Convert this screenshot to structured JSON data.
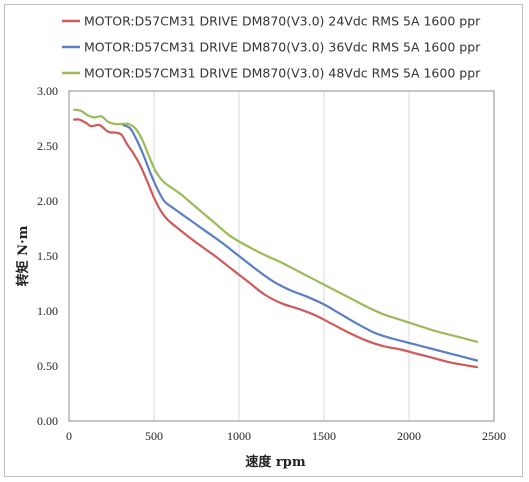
{
  "chart_data": {
    "type": "line",
    "xlabel": "速度 rpm",
    "ylabel": "转矩 N·m",
    "xlim": [
      0,
      2500
    ],
    "ylim": [
      0,
      3.0
    ],
    "x_ticks": [
      "0",
      "500",
      "1000",
      "1500",
      "2000",
      "2500"
    ],
    "y_ticks": [
      "0.00",
      "0.50",
      "1.00",
      "1.50",
      "2.00",
      "2.50",
      "3.00"
    ],
    "grid": "vertical",
    "legend_position": "top",
    "series": [
      {
        "name": "MOTOR:D57CM31 DRIVE DM870(V3.0) 24Vdc RMS 5A 1600 ppr",
        "color": "#d05a5a",
        "points": [
          [
            30,
            2.74
          ],
          [
            60,
            2.74
          ],
          [
            100,
            2.71
          ],
          [
            130,
            2.68
          ],
          [
            180,
            2.69
          ],
          [
            230,
            2.63
          ],
          [
            280,
            2.62
          ],
          [
            310,
            2.6
          ],
          [
            340,
            2.52
          ],
          [
            380,
            2.43
          ],
          [
            420,
            2.32
          ],
          [
            460,
            2.18
          ],
          [
            500,
            2.03
          ],
          [
            540,
            1.91
          ],
          [
            580,
            1.83
          ],
          [
            650,
            1.74
          ],
          [
            750,
            1.62
          ],
          [
            850,
            1.51
          ],
          [
            950,
            1.39
          ],
          [
            1050,
            1.27
          ],
          [
            1150,
            1.15
          ],
          [
            1250,
            1.07
          ],
          [
            1350,
            1.02
          ],
          [
            1450,
            0.96
          ],
          [
            1550,
            0.88
          ],
          [
            1650,
            0.8
          ],
          [
            1750,
            0.73
          ],
          [
            1850,
            0.68
          ],
          [
            1950,
            0.65
          ],
          [
            2050,
            0.61
          ],
          [
            2150,
            0.57
          ],
          [
            2250,
            0.53
          ],
          [
            2400,
            0.49
          ]
        ]
      },
      {
        "name": "MOTOR:D57CM31 DRIVE DM870(V3.0) 36Vdc RMS 5A 1600 ppr",
        "color": "#5a7fc4",
        "points": [
          [
            320,
            2.69
          ],
          [
            360,
            2.66
          ],
          [
            400,
            2.55
          ],
          [
            440,
            2.41
          ],
          [
            480,
            2.25
          ],
          [
            520,
            2.11
          ],
          [
            560,
            2.0
          ],
          [
            600,
            1.95
          ],
          [
            700,
            1.84
          ],
          [
            800,
            1.73
          ],
          [
            900,
            1.62
          ],
          [
            1000,
            1.5
          ],
          [
            1100,
            1.38
          ],
          [
            1200,
            1.27
          ],
          [
            1300,
            1.19
          ],
          [
            1400,
            1.13
          ],
          [
            1500,
            1.06
          ],
          [
            1600,
            0.97
          ],
          [
            1700,
            0.88
          ],
          [
            1800,
            0.8
          ],
          [
            1900,
            0.75
          ],
          [
            2000,
            0.71
          ],
          [
            2100,
            0.67
          ],
          [
            2200,
            0.63
          ],
          [
            2300,
            0.59
          ],
          [
            2400,
            0.55
          ]
        ]
      },
      {
        "name": "MOTOR:D57CM31 DRIVE DM870(V3.0) 48Vdc RMS 5A 1600 ppr",
        "color": "#9bbb59",
        "points": [
          [
            30,
            2.83
          ],
          [
            70,
            2.82
          ],
          [
            110,
            2.78
          ],
          [
            150,
            2.76
          ],
          [
            190,
            2.77
          ],
          [
            230,
            2.72
          ],
          [
            270,
            2.7
          ],
          [
            310,
            2.7
          ],
          [
            350,
            2.7
          ],
          [
            390,
            2.66
          ],
          [
            430,
            2.56
          ],
          [
            470,
            2.41
          ],
          [
            510,
            2.27
          ],
          [
            560,
            2.17
          ],
          [
            650,
            2.07
          ],
          [
            750,
            1.94
          ],
          [
            850,
            1.81
          ],
          [
            950,
            1.68
          ],
          [
            1050,
            1.59
          ],
          [
            1150,
            1.51
          ],
          [
            1250,
            1.44
          ],
          [
            1350,
            1.36
          ],
          [
            1450,
            1.28
          ],
          [
            1550,
            1.2
          ],
          [
            1650,
            1.12
          ],
          [
            1750,
            1.04
          ],
          [
            1850,
            0.97
          ],
          [
            1950,
            0.92
          ],
          [
            2050,
            0.87
          ],
          [
            2150,
            0.82
          ],
          [
            2250,
            0.78
          ],
          [
            2400,
            0.72
          ]
        ]
      }
    ]
  }
}
